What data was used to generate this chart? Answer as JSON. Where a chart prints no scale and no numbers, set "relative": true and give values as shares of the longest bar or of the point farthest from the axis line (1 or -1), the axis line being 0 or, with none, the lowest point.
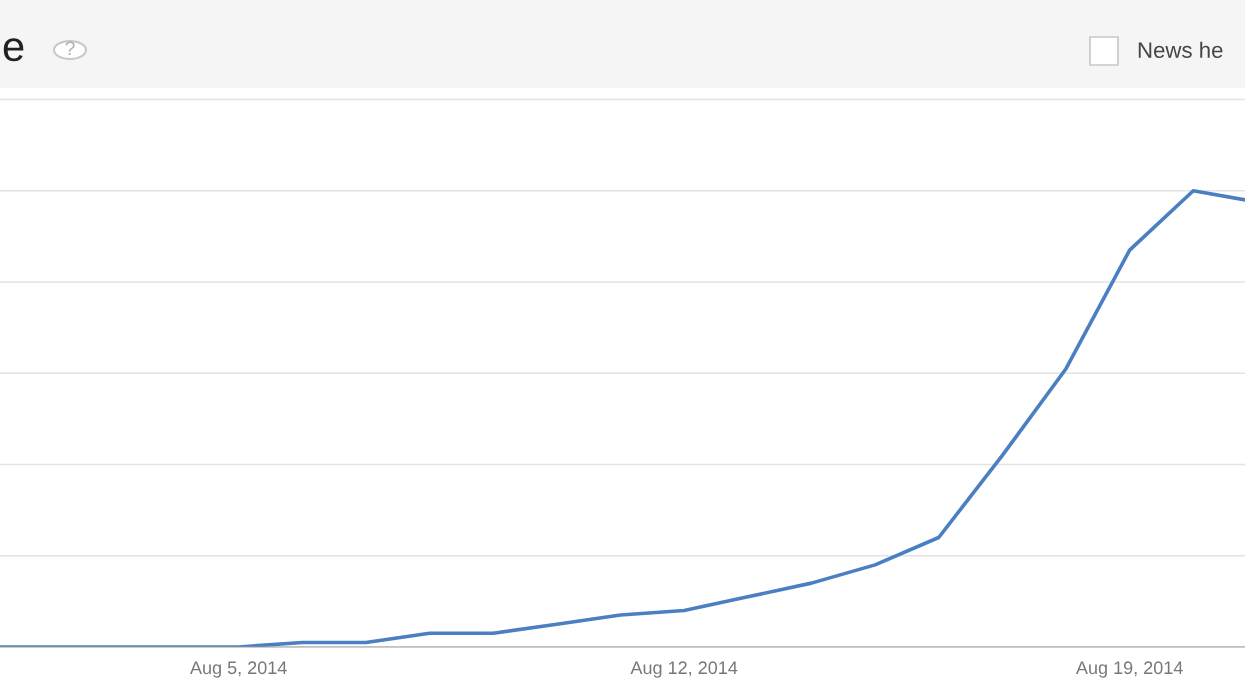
{
  "chart_data": {
    "type": "line",
    "title": "e",
    "relative": true,
    "grid": "y",
    "legend": false,
    "marker": "none",
    "line_style": "solid",
    "annotations": [
      "?",
      "News he"
    ],
    "x": [
      "2014-08-01T06:00",
      "2014-08-02",
      "2014-08-03",
      "2014-08-04",
      "2014-08-05",
      "2014-08-06",
      "2014-08-07",
      "2014-08-08",
      "2014-08-09",
      "2014-08-10",
      "2014-08-11",
      "2014-08-12",
      "2014-08-13",
      "2014-08-14",
      "2014-08-15",
      "2014-08-16",
      "2014-08-17",
      "2014-08-18",
      "2014-08-19",
      "2014-08-20",
      "2014-08-20T19:30"
    ],
    "xlim": [
      "2014-08-01T06:00",
      "2014-08-20T19:30"
    ],
    "xticks": [
      {
        "value": "2014-08-05",
        "label": "Aug 5, 2014"
      },
      {
        "value": "2014-08-12",
        "label": "Aug 12, 2014"
      },
      {
        "value": "2014-08-19",
        "label": "Aug 19, 2014"
      }
    ],
    "series": [
      {
        "color": "#4a7fc1",
        "values": [
          0,
          0,
          0,
          0,
          0,
          0.01,
          0.01,
          0.03,
          0.03,
          0.05,
          0.07,
          0.08,
          0.11,
          0.14,
          0.18,
          0.24,
          0.42,
          0.61,
          0.87,
          1,
          0.98
        ]
      }
    ]
  }
}
